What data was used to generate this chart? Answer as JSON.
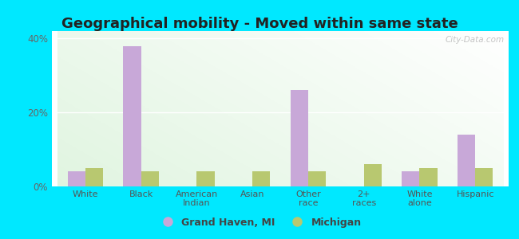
{
  "title": "Geographical mobility - Moved within same state",
  "categories": [
    "White",
    "Black",
    "American\nIndian",
    "Asian",
    "Other\nrace",
    "2+\nraces",
    "White\nalone",
    "Hispanic"
  ],
  "grand_haven": [
    4.0,
    38.0,
    0.0,
    0.0,
    26.0,
    0.0,
    4.0,
    14.0
  ],
  "michigan": [
    5.0,
    4.0,
    4.0,
    4.0,
    4.0,
    6.0,
    5.0,
    5.0
  ],
  "bar_color_gh": "#c8a8d8",
  "bar_color_mi": "#b8c870",
  "ylim": [
    0,
    42
  ],
  "yticks": [
    0,
    20,
    40
  ],
  "ytick_labels": [
    "0%",
    "20%",
    "40%"
  ],
  "legend_gh": "Grand Haven, MI",
  "legend_mi": "Michigan",
  "outer_bg": "#00e8ff",
  "title_fontsize": 13,
  "bar_width": 0.32
}
